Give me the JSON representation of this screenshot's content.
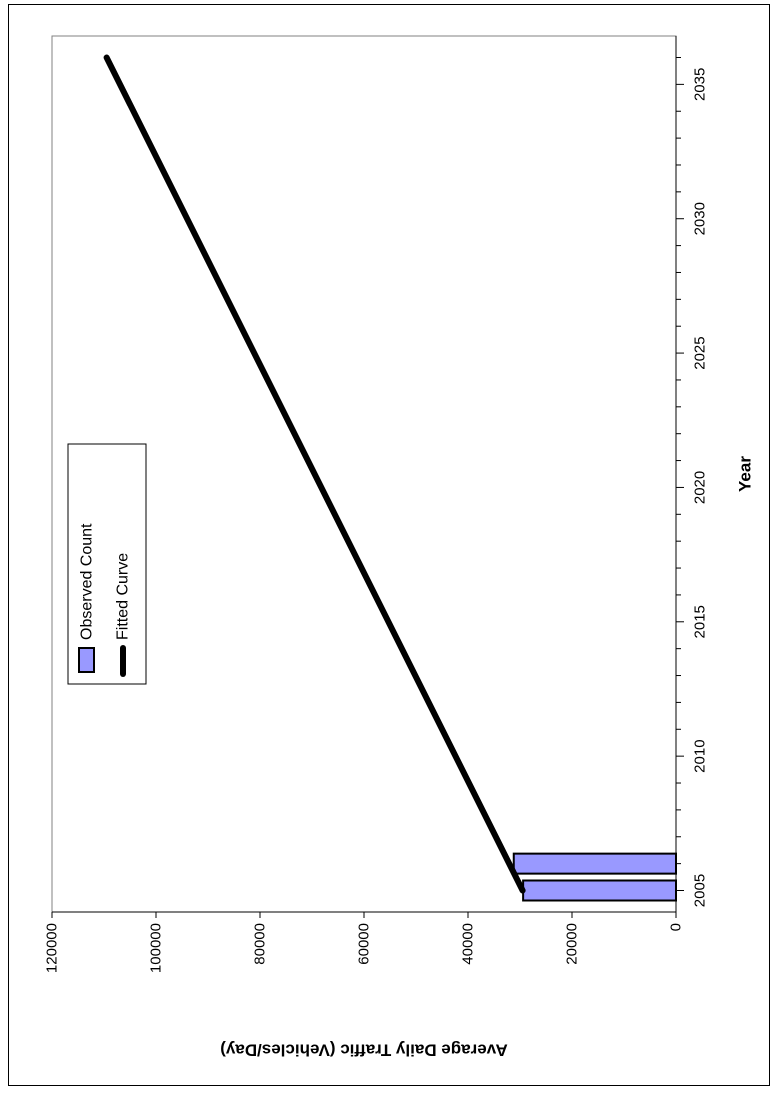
{
  "chart_data": {
    "type": "bar+line",
    "orientation": "rotated-90",
    "xlabel": "Year",
    "ylabel": "Average Daily Traffic (Vehicles/Day)",
    "x_ticks": [
      2005,
      2010,
      2015,
      2020,
      2025,
      2030,
      2035
    ],
    "x_ticks_text": [
      "2005",
      "2010",
      "2015",
      "2020",
      "2025",
      "2030",
      "2035"
    ],
    "xlim": [
      2004.2,
      2036.8
    ],
    "y_ticks": [
      0,
      20000,
      40000,
      60000,
      80000,
      100000,
      120000
    ],
    "y_ticks_text": [
      "0",
      "20000",
      "40000",
      "60000",
      "80000",
      "100000",
      "120000"
    ],
    "ylim": [
      0,
      120000
    ],
    "grid": false,
    "legend_placement": "top-left",
    "series": [
      {
        "name": "Observed Count",
        "kind": "bar",
        "color": "#9999ff",
        "points": [
          {
            "x": 2005,
            "y": 29400
          },
          {
            "x": 2006,
            "y": 31200
          }
        ]
      },
      {
        "name": "Fitted Curve",
        "kind": "line",
        "color": "#000000",
        "points": [
          {
            "x": 2005,
            "y": 29500
          },
          {
            "x": 2036,
            "y": 109500
          }
        ]
      }
    ]
  }
}
